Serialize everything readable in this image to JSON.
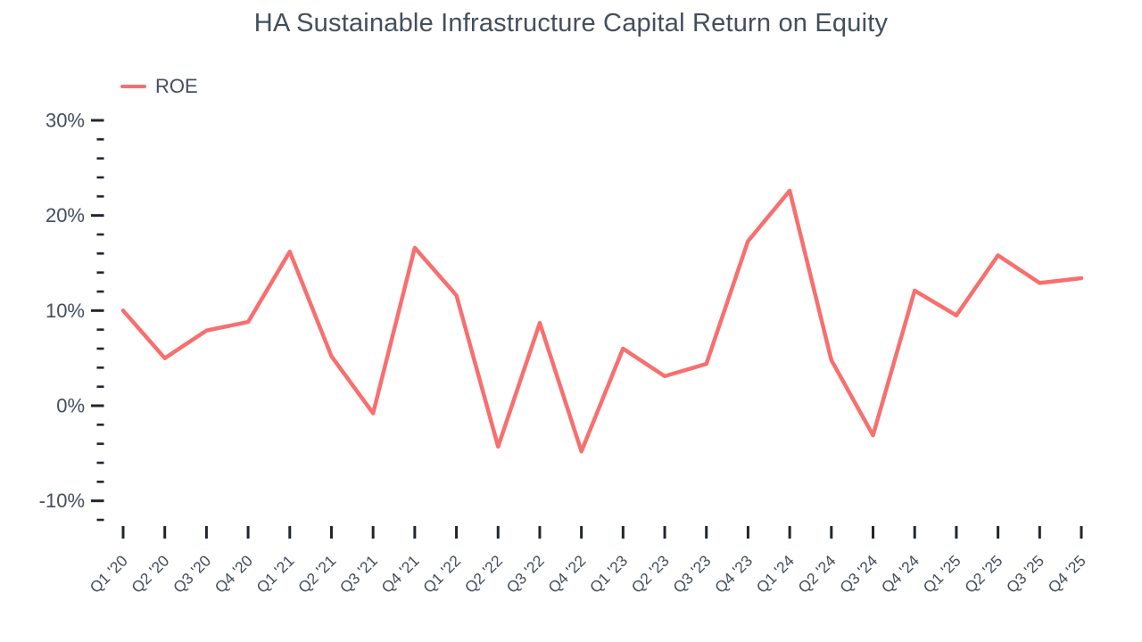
{
  "chart_data": {
    "type": "line",
    "title": "HA Sustainable Infrastructure Capital Return on Equity",
    "legend_position": "top-left",
    "grid": false,
    "unit": "%",
    "categories": [
      "Q1 '20",
      "Q2 '20",
      "Q3 '20",
      "Q4 '20",
      "Q1 '21",
      "Q2 '21",
      "Q3 '21",
      "Q4 '21",
      "Q1 '22",
      "Q2 '22",
      "Q3 '22",
      "Q4 '22",
      "Q1 '23",
      "Q2 '23",
      "Q3 '23",
      "Q4 '23",
      "Q1 '24",
      "Q2 '24",
      "Q3 '24",
      "Q4 '24",
      "Q1 '25",
      "Q2 '25",
      "Q3 '25",
      "Q4 '25"
    ],
    "series": [
      {
        "name": "ROE",
        "color": "#f76f6f",
        "values": [
          10.0,
          5.0,
          7.9,
          8.8,
          16.2,
          5.2,
          -0.8,
          16.6,
          11.6,
          -4.3,
          8.7,
          -4.8,
          6.0,
          3.1,
          4.4,
          17.3,
          22.6,
          4.8,
          -3.1,
          12.1,
          9.5,
          15.8,
          12.9,
          13.4
        ]
      }
    ],
    "y_axis": {
      "major_ticks": [
        30,
        20,
        10,
        0,
        -10
      ],
      "major_tick_labels": [
        "30%",
        "20%",
        "10%",
        "0%",
        "-10%"
      ],
      "minor_tick_step": 2,
      "range": [
        -12,
        30
      ],
      "label_suffix": "%"
    }
  },
  "styles": {
    "background": "#ffffff",
    "line_color": "#f76f6f",
    "text_color": "#434e5e",
    "tick_color": "#21262e"
  }
}
